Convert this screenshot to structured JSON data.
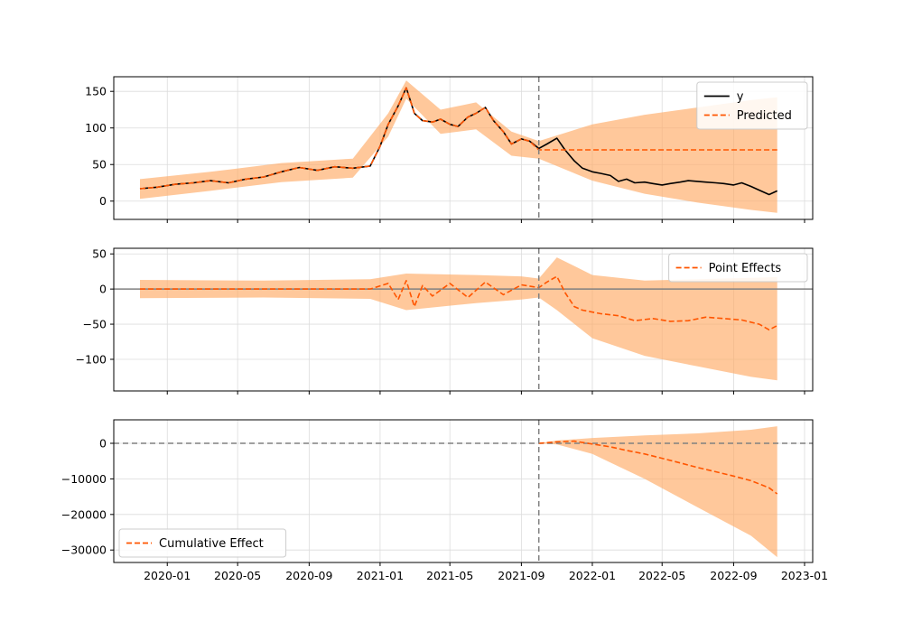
{
  "chart_data": [
    {
      "type": "line",
      "panel": "observed-vs-predicted",
      "title": "",
      "xlabel": "",
      "ylabel": "",
      "xlim": [
        "2019-10-01",
        "2023-01-15"
      ],
      "ylim": [
        -25,
        170
      ],
      "yticks": [
        0,
        50,
        100,
        150
      ],
      "ytick_labels": [
        "0",
        "50",
        "100",
        "150"
      ],
      "grid": true,
      "legend_position": "top-right",
      "intervention_date": "2021-10-01",
      "series": [
        {
          "name": "y",
          "color": "#000000",
          "style": "solid",
          "x": [
            "2019-11-15",
            "2019-12-15",
            "2020-01-15",
            "2020-02-15",
            "2020-03-15",
            "2020-04-15",
            "2020-05-15",
            "2020-06-15",
            "2020-07-15",
            "2020-08-15",
            "2020-09-15",
            "2020-10-15",
            "2020-11-15",
            "2020-12-15",
            "2021-01-01",
            "2021-01-15",
            "2021-02-01",
            "2021-02-15",
            "2021-03-01",
            "2021-03-15",
            "2021-04-01",
            "2021-04-15",
            "2021-05-01",
            "2021-05-15",
            "2021-06-01",
            "2021-06-15",
            "2021-07-01",
            "2021-07-15",
            "2021-08-01",
            "2021-08-15",
            "2021-09-01",
            "2021-09-15",
            "2021-10-01",
            "2021-10-15",
            "2021-11-01",
            "2021-11-15",
            "2021-12-01",
            "2021-12-15",
            "2022-01-01",
            "2022-01-15",
            "2022-02-01",
            "2022-02-15",
            "2022-03-01",
            "2022-03-15",
            "2022-04-01",
            "2022-04-15",
            "2022-05-01",
            "2022-05-15",
            "2022-06-01",
            "2022-06-15",
            "2022-07-01",
            "2022-07-15",
            "2022-08-01",
            "2022-08-15",
            "2022-09-01",
            "2022-09-15",
            "2022-10-01",
            "2022-10-15",
            "2022-11-01",
            "2022-11-15"
          ],
          "values": [
            17,
            19,
            23,
            25,
            28,
            25,
            30,
            33,
            40,
            46,
            42,
            47,
            45,
            48,
            75,
            105,
            130,
            155,
            120,
            110,
            108,
            112,
            105,
            102,
            115,
            120,
            128,
            110,
            95,
            78,
            85,
            82,
            72,
            78,
            86,
            70,
            55,
            45,
            40,
            38,
            35,
            27,
            30,
            25,
            26,
            24,
            22,
            24,
            26,
            28,
            27,
            26,
            25,
            24,
            22,
            25,
            20,
            15,
            9,
            14
          ]
        },
        {
          "name": "Predicted",
          "color": "#ff5500",
          "style": "dashed",
          "x": [
            "2019-11-15",
            "2019-12-15",
            "2020-01-15",
            "2020-02-15",
            "2020-03-15",
            "2020-04-15",
            "2020-05-15",
            "2020-06-15",
            "2020-07-15",
            "2020-08-15",
            "2020-09-15",
            "2020-10-15",
            "2020-11-15",
            "2020-12-15",
            "2021-01-01",
            "2021-01-15",
            "2021-02-01",
            "2021-02-15",
            "2021-03-01",
            "2021-03-15",
            "2021-04-01",
            "2021-04-15",
            "2021-05-01",
            "2021-05-15",
            "2021-06-01",
            "2021-06-15",
            "2021-07-01",
            "2021-07-15",
            "2021-08-01",
            "2021-08-15",
            "2021-09-01",
            "2021-09-15",
            "2021-10-01",
            "2022-11-15"
          ],
          "values": [
            17,
            19,
            23,
            25,
            28,
            25,
            30,
            33,
            40,
            46,
            42,
            47,
            45,
            48,
            75,
            105,
            130,
            155,
            120,
            110,
            108,
            112,
            105,
            102,
            115,
            120,
            128,
            110,
            95,
            78,
            85,
            82,
            70,
            70
          ]
        }
      ],
      "band": {
        "color": "#ffaa66",
        "x": [
          "2019-11-15",
          "2020-03-15",
          "2020-07-15",
          "2020-11-15",
          "2021-01-15",
          "2021-02-15",
          "2021-04-15",
          "2021-06-15",
          "2021-08-15",
          "2021-10-01",
          "2022-01-01",
          "2022-04-01",
          "2022-07-01",
          "2022-10-01",
          "2022-11-15"
        ],
        "upper": [
          30,
          40,
          52,
          58,
          120,
          165,
          125,
          135,
          95,
          82,
          105,
          118,
          128,
          138,
          142
        ],
        "lower": [
          3,
          14,
          26,
          32,
          88,
          140,
          92,
          98,
          62,
          58,
          28,
          10,
          -2,
          -12,
          -16
        ]
      }
    },
    {
      "type": "line",
      "panel": "point-effects",
      "title": "",
      "xlabel": "",
      "ylabel": "",
      "xlim": [
        "2019-10-01",
        "2023-01-15"
      ],
      "ylim": [
        -145,
        58
      ],
      "yticks": [
        50,
        0,
        -50,
        -100
      ],
      "ytick_labels": [
        "50",
        "0",
        "−50",
        "−100"
      ],
      "grid": true,
      "legend_position": "top-right",
      "baseline": 0,
      "intervention_date": "2021-10-01",
      "series": [
        {
          "name": "Point Effects",
          "color": "#ff5500",
          "style": "dashed",
          "x": [
            "2019-11-15",
            "2020-06-15",
            "2020-12-15",
            "2021-01-15",
            "2021-02-01",
            "2021-02-15",
            "2021-03-01",
            "2021-03-15",
            "2021-04-01",
            "2021-05-01",
            "2021-06-01",
            "2021-07-01",
            "2021-08-01",
            "2021-09-01",
            "2021-10-01",
            "2021-10-15",
            "2021-11-01",
            "2021-11-15",
            "2021-12-01",
            "2021-12-15",
            "2022-01-15",
            "2022-02-15",
            "2022-03-15",
            "2022-04-15",
            "2022-05-15",
            "2022-06-15",
            "2022-07-15",
            "2022-08-15",
            "2022-09-15",
            "2022-10-15",
            "2022-11-01",
            "2022-11-15"
          ],
          "values": [
            0,
            0,
            0,
            8,
            -15,
            12,
            -25,
            5,
            -10,
            8,
            -12,
            10,
            -8,
            6,
            2,
            10,
            18,
            -5,
            -25,
            -30,
            -35,
            -38,
            -45,
            -42,
            -46,
            -45,
            -40,
            -42,
            -44,
            -50,
            -58,
            -52
          ]
        }
      ],
      "band": {
        "color": "#ffaa66",
        "x": [
          "2019-11-15",
          "2020-06-15",
          "2020-12-15",
          "2021-02-15",
          "2021-06-15",
          "2021-09-01",
          "2021-10-01",
          "2021-11-01",
          "2022-01-01",
          "2022-04-01",
          "2022-07-01",
          "2022-10-01",
          "2022-11-15"
        ],
        "upper": [
          13,
          12,
          14,
          22,
          20,
          18,
          15,
          45,
          20,
          12,
          14,
          16,
          17
        ],
        "lower": [
          -13,
          -12,
          -14,
          -30,
          -20,
          -15,
          -12,
          -30,
          -70,
          -95,
          -110,
          -125,
          -130
        ]
      }
    },
    {
      "type": "line",
      "panel": "cumulative-effect",
      "title": "",
      "xlabel": "",
      "ylabel": "",
      "xlim": [
        "2019-10-01",
        "2023-01-15"
      ],
      "ylim": [
        -33500,
        6600
      ],
      "yticks": [
        0,
        -10000,
        -20000,
        -30000
      ],
      "ytick_labels": [
        "0",
        "−10000",
        "−20000",
        "−30000"
      ],
      "xticks": [
        "2020-01-01",
        "2020-05-01",
        "2020-09-01",
        "2021-01-01",
        "2021-05-01",
        "2021-09-01",
        "2022-01-01",
        "2022-05-01",
        "2022-09-01",
        "2023-01-01"
      ],
      "xtick_labels": [
        "2020-01",
        "2020-05",
        "2020-09",
        "2021-01",
        "2021-05",
        "2021-09",
        "2022-01",
        "2022-05",
        "2022-09",
        "2023-01"
      ],
      "grid": true,
      "legend_position": "bottom-left",
      "baseline": 0,
      "intervention_date": "2021-10-01",
      "series": [
        {
          "name": "Cumulative Effect",
          "color": "#ff5500",
          "style": "dashed",
          "x": [
            "2021-10-01",
            "2021-11-01",
            "2021-12-01",
            "2022-01-01",
            "2022-02-01",
            "2022-03-01",
            "2022-04-01",
            "2022-05-01",
            "2022-06-01",
            "2022-07-01",
            "2022-08-01",
            "2022-09-01",
            "2022-10-01",
            "2022-11-01",
            "2022-11-15"
          ],
          "values": [
            0,
            400,
            600,
            -200,
            -1000,
            -2000,
            -3000,
            -4200,
            -5500,
            -6800,
            -8000,
            -9200,
            -10500,
            -12500,
            -14200
          ]
        }
      ],
      "band": {
        "color": "#ffaa66",
        "x": [
          "2021-10-01",
          "2021-11-01",
          "2022-01-01",
          "2022-04-01",
          "2022-07-01",
          "2022-10-01",
          "2022-11-15"
        ],
        "upper": [
          0,
          800,
          1500,
          2200,
          2800,
          3800,
          4800
        ],
        "lower": [
          0,
          -300,
          -3000,
          -10000,
          -18000,
          -26000,
          -32000
        ]
      }
    }
  ]
}
